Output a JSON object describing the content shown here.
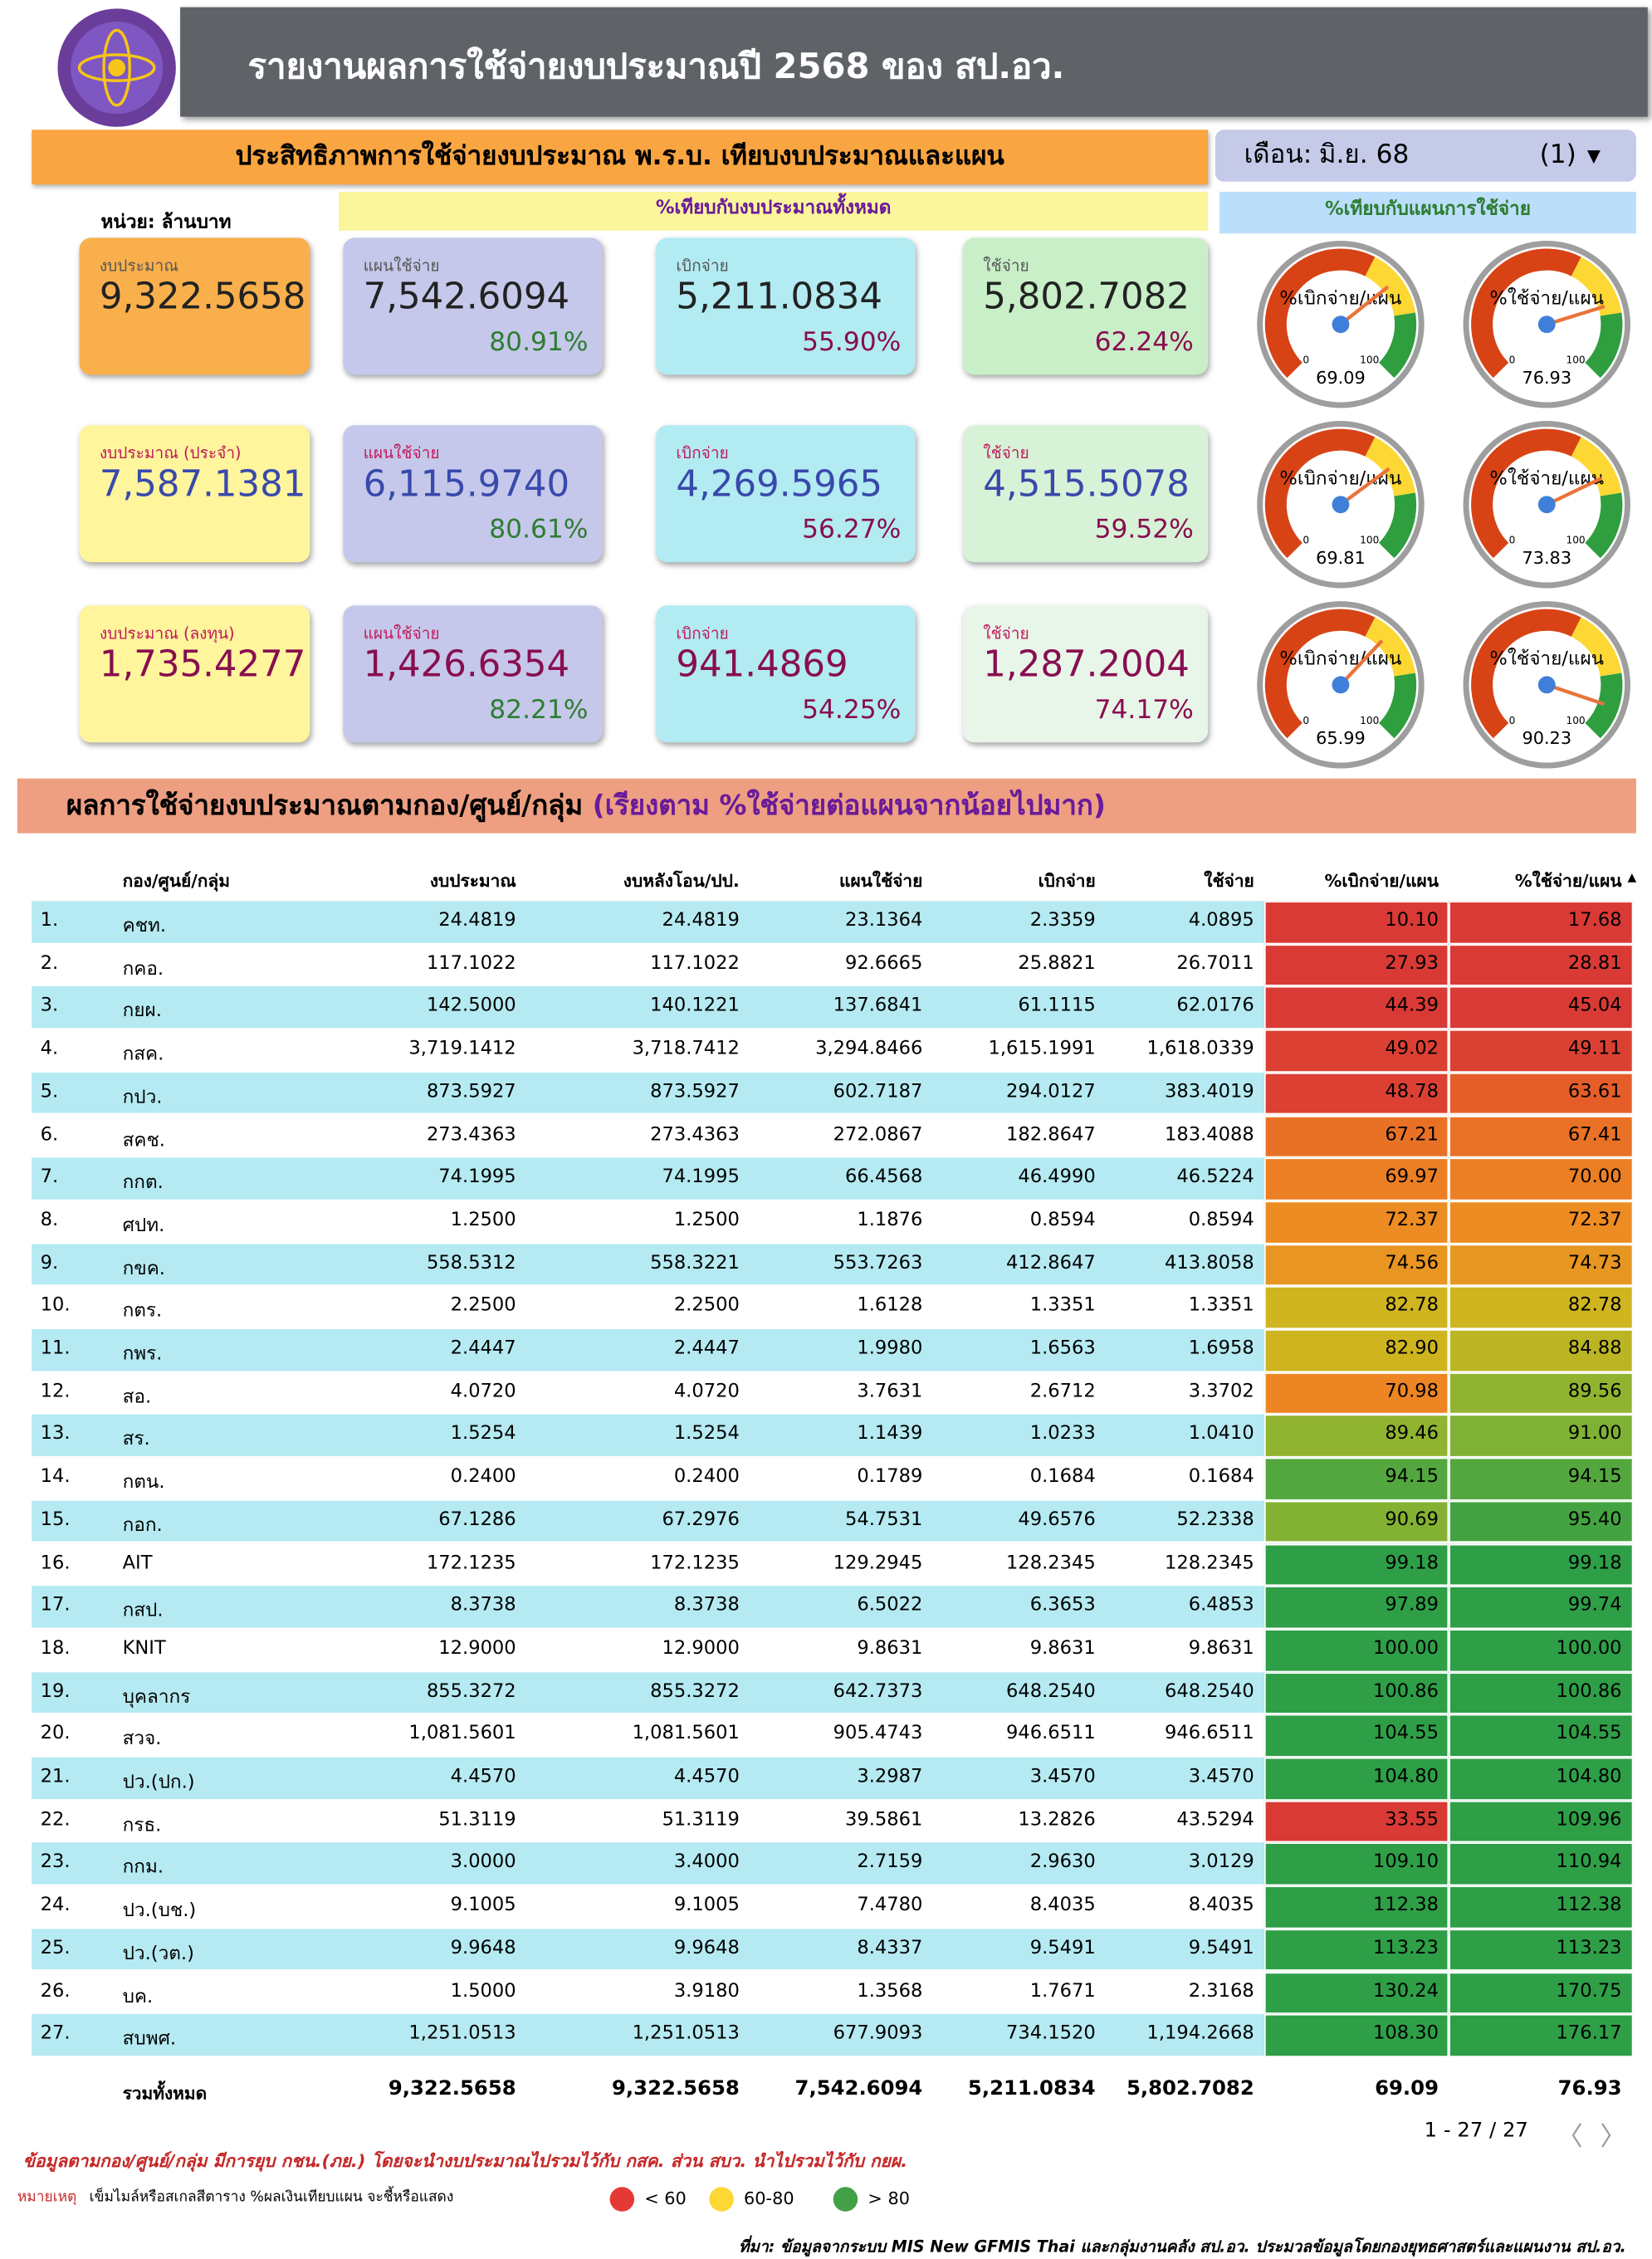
{
  "header": {
    "title": "รายงานผลการใช้จ่ายงบประมาณปี 2568 ของ สป.อว."
  },
  "banner": "ประสิทธิภาพการใช้จ่ายงบประมาณ พ.ร.บ. เทียบงบประมาณและแผน",
  "month": {
    "label": "เดือน:",
    "value": "มิ.ย. 68",
    "count": "(1)"
  },
  "unit": "หน่วย: ล้านบาท",
  "compare_headers": [
    "%เทียบกับงบประมาณทั้งหมด",
    "%เทียบกับแผนการใช้จ่าย"
  ],
  "cards": [
    [
      {
        "label": "งบประมาณ",
        "value": "9,322.5658"
      },
      {
        "label": "แผนใช้จ่าย",
        "value": "7,542.6094",
        "percent": "80.91%"
      },
      {
        "label": "เบิกจ่าย",
        "value": "5,211.0834",
        "percent": "55.90%"
      },
      {
        "label": "ใช้จ่าย",
        "value": "5,802.7082",
        "percent": "62.24%"
      }
    ],
    [
      {
        "label": "งบประมาณ (ประจำ)",
        "value": "7,587.1381"
      },
      {
        "label": "แผนใช้จ่าย",
        "value": "6,115.9740",
        "percent": "80.61%"
      },
      {
        "label": "เบิกจ่าย",
        "value": "4,269.5965",
        "percent": "56.27%"
      },
      {
        "label": "ใช้จ่าย",
        "value": "4,515.5078",
        "percent": "59.52%"
      }
    ],
    [
      {
        "label": "งบประมาณ (ลงทุน)",
        "value": "1,735.4277"
      },
      {
        "label": "แผนใช้จ่าย",
        "value": "1,426.6354",
        "percent": "82.21%"
      },
      {
        "label": "เบิกจ่าย",
        "value": "941.4869",
        "percent": "54.25%"
      },
      {
        "label": "ใช้จ่าย",
        "value": "1,287.2004",
        "percent": "74.17%"
      }
    ]
  ],
  "gauge_scale": [
    0,
    100
  ],
  "gauges": [
    {
      "label": "%เบิกจ่าย/แผน",
      "value": 69.09
    },
    {
      "label": "%ใช้จ่าย/แผน",
      "value": 76.93
    },
    {
      "label": "%เบิกจ่าย/แผน",
      "value": 69.81
    },
    {
      "label": "%ใช้จ่าย/แผน",
      "value": 73.83
    },
    {
      "label": "%เบิกจ่าย/แผน",
      "value": 65.99
    },
    {
      "label": "%ใช้จ่าย/แผน",
      "value": 90.23
    }
  ],
  "section": {
    "title": "ผลการใช้จ่ายงบประมาณตามกอง/ศูนย์/กลุ่ม",
    "note": "(เรียงตาม %ใช้จ่ายต่อแผนจากน้อยไปมาก)"
  },
  "table": {
    "columns": [
      "กอง/ศูนย์/กลุ่ม",
      "งบประมาณ",
      "งบหลังโอน/ปป.",
      "แผนใช้จ่าย",
      "เบิกจ่าย",
      "ใช้จ่าย",
      "%เบิกจ่าย/แผน",
      "%ใช้จ่าย/แผน"
    ],
    "rows": [
      [
        "1.",
        "คชท.",
        "24.4819",
        "24.4819",
        "23.1364",
        "2.3359",
        "4.0895",
        "10.10",
        "17.68"
      ],
      [
        "2.",
        "กคอ.",
        "117.1022",
        "117.1022",
        "92.6665",
        "25.8821",
        "26.7011",
        "27.93",
        "28.81"
      ],
      [
        "3.",
        "กยผ.",
        "142.5000",
        "140.1221",
        "137.6841",
        "61.1115",
        "62.0176",
        "44.39",
        "45.04"
      ],
      [
        "4.",
        "กสค.",
        "3,719.1412",
        "3,718.7412",
        "3,294.8466",
        "1,615.1991",
        "1,618.0339",
        "49.02",
        "49.11"
      ],
      [
        "5.",
        "กปว.",
        "873.5927",
        "873.5927",
        "602.7187",
        "294.0127",
        "383.4019",
        "48.78",
        "63.61"
      ],
      [
        "6.",
        "สคช.",
        "273.4363",
        "273.4363",
        "272.0867",
        "182.8647",
        "183.4088",
        "67.21",
        "67.41"
      ],
      [
        "7.",
        "กกต.",
        "74.1995",
        "74.1995",
        "66.4568",
        "46.4990",
        "46.5224",
        "69.97",
        "70.00"
      ],
      [
        "8.",
        "ศปท.",
        "1.2500",
        "1.2500",
        "1.1876",
        "0.8594",
        "0.8594",
        "72.37",
        "72.37"
      ],
      [
        "9.",
        "กขค.",
        "558.5312",
        "558.3221",
        "553.7263",
        "412.8647",
        "413.8058",
        "74.56",
        "74.73"
      ],
      [
        "10.",
        "กตร.",
        "2.2500",
        "2.2500",
        "1.6128",
        "1.3351",
        "1.3351",
        "82.78",
        "82.78"
      ],
      [
        "11.",
        "กพร.",
        "2.4447",
        "2.4447",
        "1.9980",
        "1.6563",
        "1.6958",
        "82.90",
        "84.88"
      ],
      [
        "12.",
        "สอ.",
        "4.0720",
        "4.0720",
        "3.7631",
        "2.6712",
        "3.3702",
        "70.98",
        "89.56"
      ],
      [
        "13.",
        "สร.",
        "1.5254",
        "1.5254",
        "1.1439",
        "1.0233",
        "1.0410",
        "89.46",
        "91.00"
      ],
      [
        "14.",
        "กตน.",
        "0.2400",
        "0.2400",
        "0.1789",
        "0.1684",
        "0.1684",
        "94.15",
        "94.15"
      ],
      [
        "15.",
        "กอก.",
        "67.1286",
        "67.2976",
        "54.7531",
        "49.6576",
        "52.2338",
        "90.69",
        "95.40"
      ],
      [
        "16.",
        "AIT",
        "172.1235",
        "172.1235",
        "129.2945",
        "128.2345",
        "128.2345",
        "99.18",
        "99.18"
      ],
      [
        "17.",
        "กสป.",
        "8.3738",
        "8.3738",
        "6.5022",
        "6.3653",
        "6.4853",
        "97.89",
        "99.74"
      ],
      [
        "18.",
        "KNIT",
        "12.9000",
        "12.9000",
        "9.8631",
        "9.8631",
        "9.8631",
        "100.00",
        "100.00"
      ],
      [
        "19.",
        "บุคลากร",
        "855.3272",
        "855.3272",
        "642.7373",
        "648.2540",
        "648.2540",
        "100.86",
        "100.86"
      ],
      [
        "20.",
        "สวจ.",
        "1,081.5601",
        "1,081.5601",
        "905.4743",
        "946.6511",
        "946.6511",
        "104.55",
        "104.55"
      ],
      [
        "21.",
        "ปว.(ปก.)",
        "4.4570",
        "4.4570",
        "3.2987",
        "3.4570",
        "3.4570",
        "104.80",
        "104.80"
      ],
      [
        "22.",
        "กรธ.",
        "51.3119",
        "51.3119",
        "39.5861",
        "13.2826",
        "43.5294",
        "33.55",
        "109.96"
      ],
      [
        "23.",
        "กกม.",
        "3.0000",
        "3.4000",
        "2.7159",
        "2.9630",
        "3.0129",
        "109.10",
        "110.94"
      ],
      [
        "24.",
        "ปว.(บช.)",
        "9.1005",
        "9.1005",
        "7.4780",
        "8.4035",
        "8.4035",
        "112.38",
        "112.38"
      ],
      [
        "25.",
        "ปว.(วต.)",
        "9.9648",
        "9.9648",
        "8.4337",
        "9.5491",
        "9.5491",
        "113.23",
        "113.23"
      ],
      [
        "26.",
        "บค.",
        "1.5000",
        "3.9180",
        "1.3568",
        "1.7671",
        "2.3168",
        "130.24",
        "170.75"
      ],
      [
        "27.",
        "สบพศ.",
        "1,251.0513",
        "1,251.0513",
        "677.9093",
        "734.1520",
        "1,194.2668",
        "108.30",
        "176.17"
      ]
    ],
    "total": [
      "รวมทั้งหมด",
      "9,322.5658",
      "9,322.5658",
      "7,542.6094",
      "5,211.0834",
      "5,802.7082",
      "69.09",
      "76.93"
    ]
  },
  "pagination": "1 - 27 / 27",
  "note": "ข้อมูลตามกอง/ศูนย์/กลุ่ม มีการยุบ กชน.(ภย.) โดยจะนำงบประมาณไปรวมไว้กับ กสค. ส่วน สบว. นำไปรวมไว้กับ กยผ.",
  "remark": {
    "label": "หมายเหตุ",
    "text": "เข็มไมล์หรือสเกลสีตาราง %ผลเงินเทียบแผน จะชี้หรือแสดง"
  },
  "legend": [
    {
      "label": "< 60",
      "color": "#e53935"
    },
    {
      "label": "60-80",
      "color": "#fdd835"
    },
    {
      "label": "> 80",
      "color": "#43a047"
    }
  ],
  "source": "ที่มา: ข้อมูลจากระบบ MIS New GFMIS Thai และกลุ่มงานคลัง สป.อว. ประมวลข้อมูลโดยกองยุทธศาสตร์และแผนงาน สป.อว."
}
